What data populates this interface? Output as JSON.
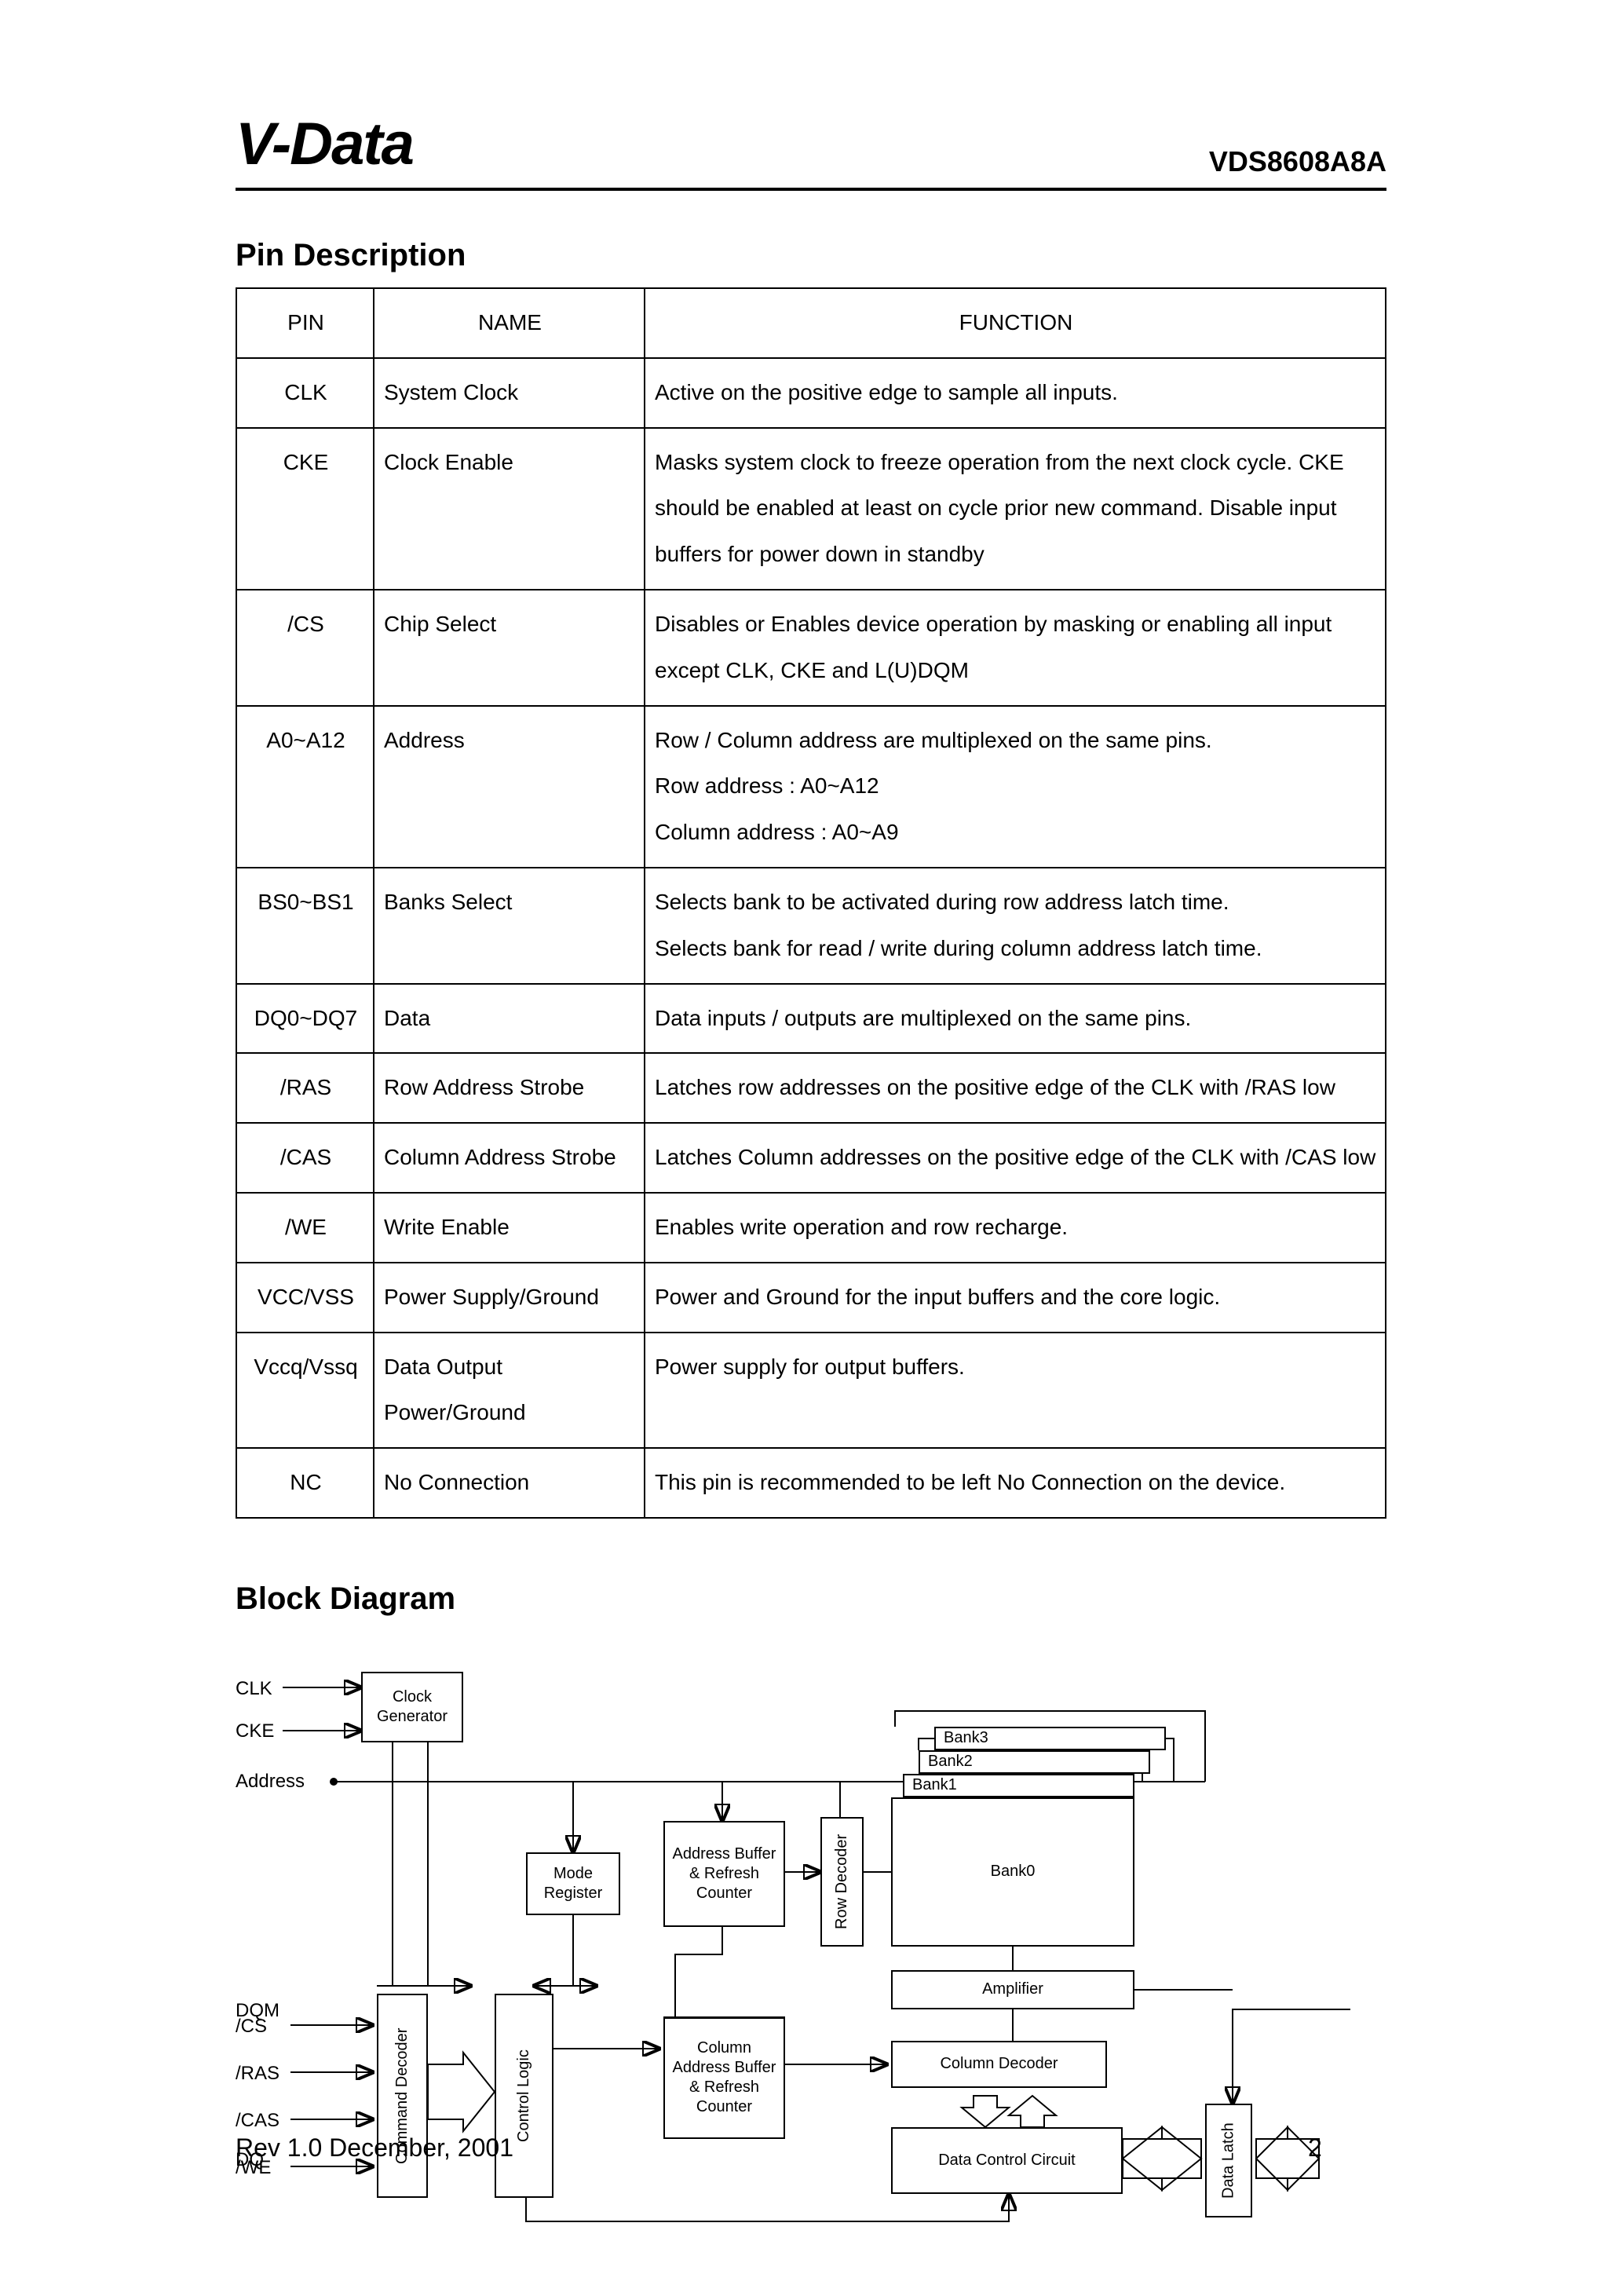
{
  "header": {
    "logo": "V-Data",
    "part_number": "VDS8608A8A"
  },
  "pin_section": {
    "title": "Pin Description",
    "columns": [
      "PIN",
      "NAME",
      "FUNCTION"
    ],
    "rows": [
      {
        "pin": "CLK",
        "name": "System Clock",
        "func": "Active on the positive edge to sample all inputs."
      },
      {
        "pin": "CKE",
        "name": "Clock Enable",
        "func": "Masks system clock to freeze operation from the next clock cycle. CKE should be enabled at least on cycle prior new command. Disable input buffers for power down in standby"
      },
      {
        "pin": "/CS",
        "name": "Chip Select",
        "func": "Disables or Enables device operation by masking or enabling all input except CLK, CKE and L(U)DQM"
      },
      {
        "pin": "A0~A12",
        "name": "Address",
        "func": "Row / Column address are multiplexed on the same pins.\nRow address : A0~A12\nColumn address : A0~A9"
      },
      {
        "pin": "BS0~BS1",
        "name": "Banks Select",
        "func": "Selects bank to be activated during row address latch time.\nSelects bank for read / write during column address latch time."
      },
      {
        "pin": "DQ0~DQ7",
        "name": "Data",
        "func": "Data inputs / outputs are multiplexed on the same pins."
      },
      {
        "pin": "/RAS",
        "name": "Row Address Strobe",
        "func": "Latches row addresses on the positive edge of the CLK with /RAS low"
      },
      {
        "pin": "/CAS",
        "name": "Column Address Strobe",
        "func": "Latches Column addresses on the positive edge of the CLK with /CAS low"
      },
      {
        "pin": "/WE",
        "name": "Write Enable",
        "func": "Enables write operation and row recharge."
      },
      {
        "pin": "VCC/VSS",
        "name": "Power Supply/Ground",
        "func": "Power and Ground for the input buffers and the core logic."
      },
      {
        "pin": "Vccq/Vssq",
        "name": "Data Output Power/Ground",
        "func": "Power supply for output buffers."
      },
      {
        "pin": "NC",
        "name": "No Connection",
        "func": "This pin is recommended to be left No Connection on the device."
      }
    ]
  },
  "block_section": {
    "title": "Block Diagram",
    "input_labels": {
      "clk": "CLK",
      "cke": "CKE",
      "address": "Address",
      "cs": "/CS",
      "ras": "/RAS",
      "cas": "/CAS",
      "we": "/WE"
    },
    "output_labels": {
      "dqm": "DQM",
      "dq": "DQ"
    },
    "blocks": {
      "clock_gen": "Clock\nGenerator",
      "mode_reg": "Mode\nRegister",
      "addr_buf": "Address\nBuffer\n&\nRefresh\nCounter",
      "row_dec": "Row Decoder",
      "bank0": "Bank0",
      "bank1": "Bank1",
      "bank2": "Bank2",
      "bank3": "Bank3",
      "amplifier": "Amplifier",
      "cmd_dec": "Command Decoder",
      "ctrl_logic": "Control Logic",
      "col_addr_buf": "Column\nAddress\nBuffer\n&\nRefresh\nCounter",
      "col_dec": "Column Decoder",
      "data_ctrl": "Data Control Circuit",
      "data_latch": "Data Latch"
    },
    "style": {
      "line_color": "#000000",
      "box_border": "#000000",
      "box_fill": "#ffffff",
      "font_size_labels": 24,
      "font_size_boxes": 20
    }
  },
  "footer": {
    "revision": "Rev 1.0 December, 2001",
    "page": "2"
  }
}
